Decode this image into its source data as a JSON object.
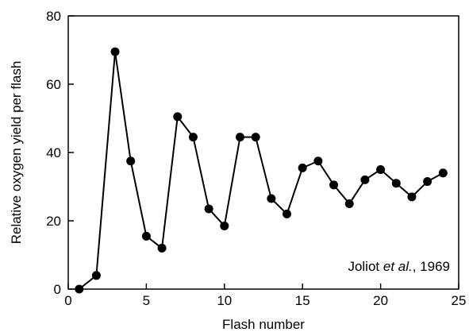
{
  "chart_data": {
    "type": "line",
    "title": "",
    "xlabel": "Flash number",
    "ylabel": "Relative oxygen yield per flash",
    "xlim": [
      0,
      25
    ],
    "ylim": [
      0,
      80
    ],
    "xticks": [
      0,
      5,
      10,
      15,
      20,
      25
    ],
    "yticks": [
      0,
      20,
      40,
      60,
      80
    ],
    "grid": false,
    "legend": "none",
    "annotation": {
      "prefix": "Joliot ",
      "italic": "et al.",
      "suffix": ", 1969",
      "placement": "bottom-right"
    },
    "series": [
      {
        "color": "#000000",
        "marker": "filled-circle",
        "x": [
          0.7,
          1.8,
          3,
          4,
          5,
          6,
          7,
          8,
          9,
          10,
          11,
          12,
          13,
          14,
          15,
          16,
          17,
          18,
          19,
          20,
          21,
          22,
          23,
          24
        ],
        "y": [
          0,
          4,
          69.5,
          37.5,
          15.5,
          12,
          50.5,
          44.5,
          23.5,
          18.5,
          44.5,
          44.5,
          26.5,
          22,
          35.5,
          37.5,
          30.5,
          25,
          32,
          35,
          31,
          27,
          31.5,
          34
        ]
      }
    ]
  }
}
